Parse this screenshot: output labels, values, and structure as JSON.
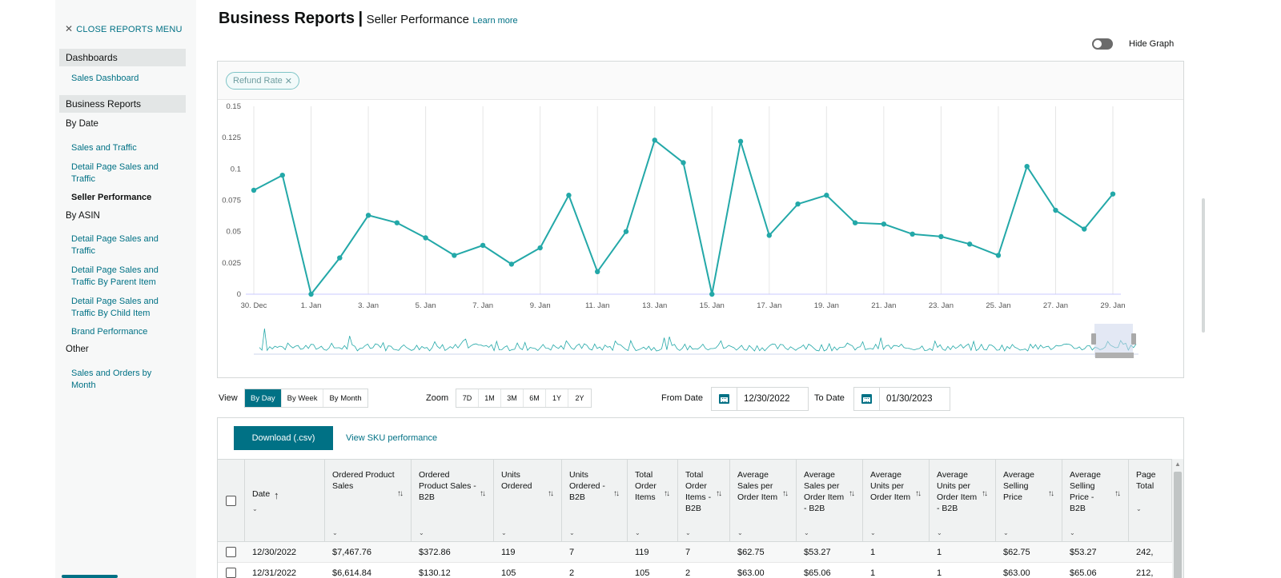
{
  "sidebar": {
    "close_label": "CLOSE REPORTS MENU",
    "sections": [
      {
        "label": "Dashboards"
      },
      {
        "label": "Business Reports"
      }
    ],
    "sales_dashboard": "Sales Dashboard",
    "by_date": "By Date",
    "by_date_items": [
      "Sales and Traffic",
      "Detail Page Sales and Traffic",
      "Seller Performance"
    ],
    "by_asin": "By ASIN",
    "by_asin_items": [
      "Detail Page Sales and Traffic",
      "Detail Page Sales and Traffic By Parent Item",
      "Detail Page Sales and Traffic By Child Item",
      "Brand Performance"
    ],
    "other": "Other",
    "other_items": [
      "Sales and Orders by Month"
    ]
  },
  "header": {
    "title": "Business Reports",
    "separator": "|",
    "subtitle": "Seller Performance",
    "learn_more": "Learn more"
  },
  "graph_toggle": {
    "label": "Hide Graph",
    "on": false
  },
  "chart_controls": {
    "metric_chip": "Refund Rate",
    "view_label": "View",
    "view_options": [
      "By Day",
      "By Week",
      "By Month"
    ],
    "view_selected": "By Day",
    "zoom_label": "Zoom",
    "zoom_options": [
      "7D",
      "1M",
      "3M",
      "6M",
      "1Y",
      "2Y"
    ],
    "from_label": "From Date",
    "from_value": "12/30/2022",
    "to_label": "To Date",
    "to_value": "01/30/2023"
  },
  "colors": {
    "accent": "#007185",
    "line": "#23a8a8",
    "sidebar_bg": "#f7f8f8"
  },
  "chart_data": {
    "type": "line",
    "series": [
      {
        "values": [
          0.083,
          0.095,
          0.0,
          0.029,
          0.063,
          0.057,
          0.045,
          0.031,
          0.039,
          0.024,
          0.037,
          0.079,
          0.018,
          0.05,
          0.123,
          0.105,
          0.0,
          0.122,
          0.047,
          0.072,
          0.079,
          0.057,
          0.056,
          0.048,
          0.046,
          0.04,
          0.031,
          0.102,
          0.067,
          0.052,
          0.08
        ]
      }
    ],
    "x": [
      "30. Dec",
      "31. Dec",
      "1. Jan",
      "2. Jan",
      "3. Jan",
      "4. Jan",
      "5. Jan",
      "6. Jan",
      "7. Jan",
      "8. Jan",
      "9. Jan",
      "10. Jan",
      "11. Jan",
      "12. Jan",
      "13. Jan",
      "14. Jan",
      "15. Jan",
      "16. Jan",
      "17. Jan",
      "18. Jan",
      "19. Jan",
      "20. Jan",
      "21. Jan",
      "22. Jan",
      "23. Jan",
      "24. Jan",
      "25. Jan",
      "26. Jan",
      "27. Jan",
      "28. Jan",
      "29. Jan"
    ],
    "x_tick_labels": [
      "30. Dec",
      "1. Jan",
      "3. Jan",
      "5. Jan",
      "7. Jan",
      "9. Jan",
      "11. Jan",
      "13. Jan",
      "15. Jan",
      "17. Jan",
      "19. Jan",
      "21. Jan",
      "23. Jan",
      "25. Jan",
      "27. Jan",
      "29. Jan"
    ],
    "y_ticks": [
      0,
      0.025,
      0.05,
      0.075,
      0.1,
      0.125,
      0.15
    ],
    "y_tick_labels": [
      "0",
      "0.025",
      "0.05",
      "0.075",
      "0.1",
      "0.125",
      "0.15"
    ],
    "ylim": [
      0,
      0.15
    ],
    "grid": true,
    "navigator": true
  },
  "table": {
    "download_label": "Download (.csv)",
    "sku_link": "View SKU performance",
    "columns": [
      {
        "label": "Date"
      },
      {
        "label": "Ordered Product Sales"
      },
      {
        "label": "Ordered Product Sales - B2B"
      },
      {
        "label": "Units Ordered"
      },
      {
        "label": "Units Ordered - B2B"
      },
      {
        "label": "Total Order Items"
      },
      {
        "label": "Total Order Items - B2B"
      },
      {
        "label": "Average Sales per Order Item"
      },
      {
        "label": "Average Sales per Order Item - B2B"
      },
      {
        "label": "Average Units per Order Item"
      },
      {
        "label": "Average Units per Order Item - B2B"
      },
      {
        "label": "Average Selling Price"
      },
      {
        "label": "Average Selling Price - B2B"
      },
      {
        "label": "Page Total"
      }
    ],
    "rows": [
      [
        "12/30/2022",
        "$7,467.76",
        "$372.86",
        "119",
        "7",
        "119",
        "7",
        "$62.75",
        "$53.27",
        "1",
        "1",
        "$62.75",
        "$53.27",
        "242,"
      ],
      [
        "12/31/2022",
        "$6,614.84",
        "$130.12",
        "105",
        "2",
        "105",
        "2",
        "$63.00",
        "$65.06",
        "1",
        "1",
        "$63.00",
        "$65.06",
        "212,"
      ]
    ]
  }
}
